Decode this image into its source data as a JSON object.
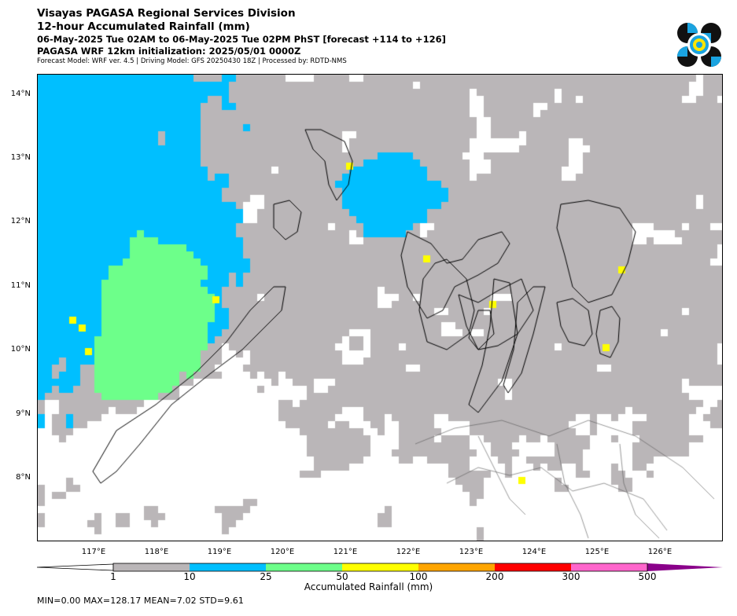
{
  "header": {
    "line1": "Visayas PAGASA Regional Services Division",
    "line2": "12-hour Accumulated Rainfall (mm)",
    "line3": "06-May-2025 Tue 02AM to 06-May-2025 Tue 02PM PhST [forecast +114 to +126]",
    "line4": "PAGASA WRF 12km initialization: 2025/05/01 0000Z",
    "line5": "Forecast Model: WRF ver. 4.5 | Driving Model: GFS 20250430 18Z | Processed by: RDTD-NMS"
  },
  "axes": {
    "lat_labels": [
      "14°N",
      "13°N",
      "12°N",
      "11°N",
      "10°N",
      "9°N",
      "8°N"
    ],
    "lon_labels": [
      "117°E",
      "118°E",
      "119°E",
      "120°E",
      "121°E",
      "122°E",
      "123°E",
      "124°E",
      "125°E",
      "126°E"
    ]
  },
  "colorbar": {
    "title": "Accumulated Rainfall (mm)",
    "tick_labels": [
      "1",
      "10",
      "25",
      "50",
      "100",
      "200",
      "300",
      "500"
    ],
    "colors": [
      "#bab6b8",
      "#00bfff",
      "#6dff8a",
      "#ffff00",
      "#ffa500",
      "#ff0000",
      "#ff66cc",
      "#8a008a"
    ]
  },
  "stats": {
    "text": "MIN=0.00   MAX=128.17   MEAN=7.02   STD=9.61"
  },
  "map_colors": {
    "none": "#ffffff",
    "light": "#bab6b8",
    "moderate": "#00bfff",
    "heavy": "#6dff8a",
    "intense": "#ffff00",
    "coast": "#000000",
    "border": "#555555"
  }
}
